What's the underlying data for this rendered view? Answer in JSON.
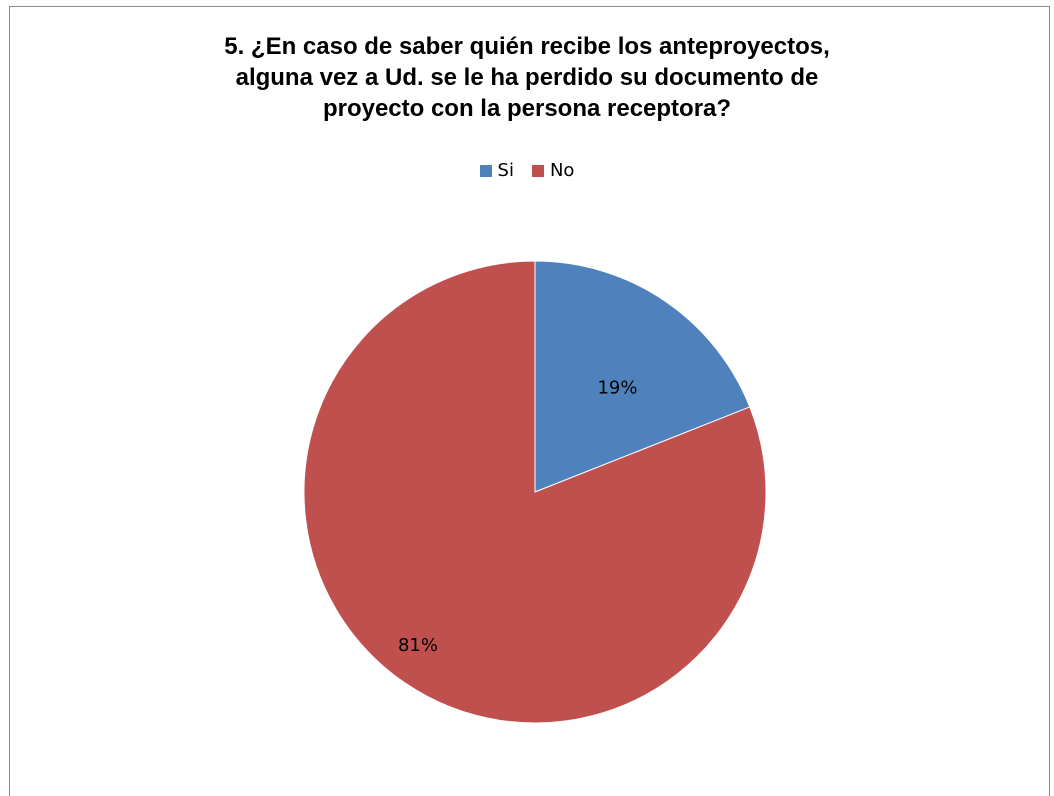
{
  "chart_data": {
    "type": "pie",
    "title_lines": [
      "5. ¿En caso de saber quién recibe los anteproyectos,",
      "alguna vez a Ud. se le ha perdido su documento de",
      "proyecto con la persona receptora?"
    ],
    "categories": [
      "Si",
      "No"
    ],
    "values": [
      19,
      81
    ],
    "data_labels": [
      "19%",
      "81%"
    ],
    "colors": [
      "#4f81bd",
      "#c0504d"
    ],
    "legend_position": "top"
  }
}
